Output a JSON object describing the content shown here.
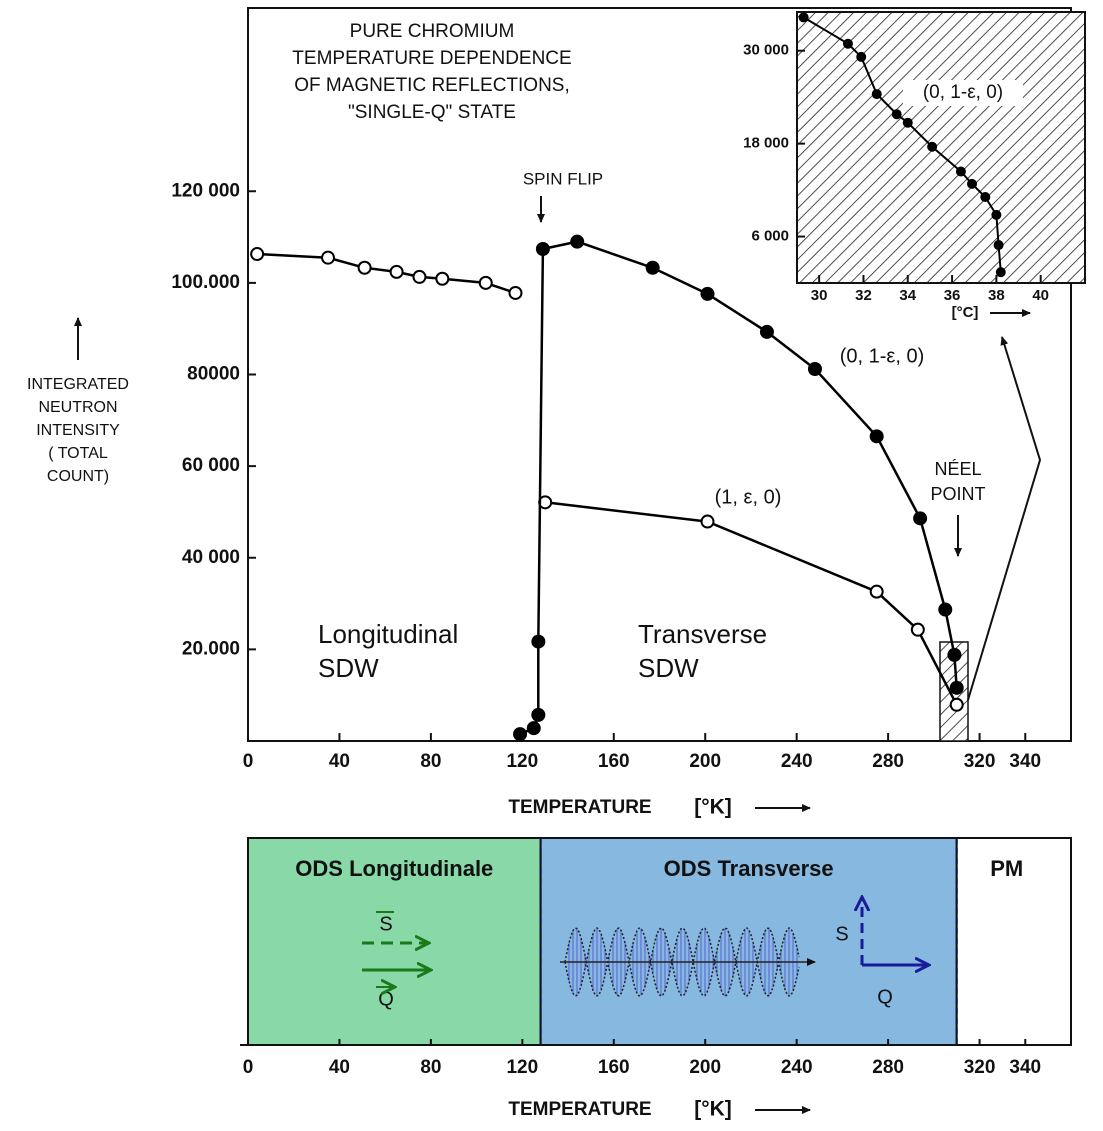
{
  "chart_data": [
    {
      "type": "line",
      "title": [
        "PURE CHROMIUM",
        "TEMPERATURE DEPENDENCE",
        "OF MAGNETIC REFLECTIONS,",
        "\"SINGLE-Q\" STATE"
      ],
      "ylabel": [
        "INTEGRATED",
        "NEUTRON",
        "INTENSITY",
        "( TOTAL",
        "COUNT)"
      ],
      "xlabel": "TEMPERATURE",
      "xunit": "[°K]",
      "xlim": [
        0,
        360
      ],
      "xticks": [
        0,
        40,
        80,
        120,
        160,
        200,
        240,
        280,
        320,
        340
      ],
      "ylim": [
        0,
        160000
      ],
      "yticks": [
        {
          "value": 20000,
          "label": "20.000"
        },
        {
          "value": 40000,
          "label": "40 000"
        },
        {
          "value": 60000,
          "label": "60 000"
        },
        {
          "value": 80000,
          "label": "80000"
        },
        {
          "value": 100000,
          "label": "100.000"
        },
        {
          "value": 120000,
          "label": "120 000"
        }
      ],
      "grid": false,
      "series": [
        {
          "marker": "open",
          "color": "#000000",
          "x": [
            4,
            35,
            51,
            65,
            75,
            85,
            104,
            117
          ],
          "values": [
            106300,
            105500,
            103300,
            102400,
            101300,
            100900,
            100000,
            97800
          ]
        },
        {
          "name": "(1, ε, 0)",
          "marker": "open",
          "color": "#000000",
          "x": [
            130,
            201,
            275,
            293,
            310
          ],
          "values": [
            52100,
            47900,
            32600,
            24300,
            7900
          ]
        },
        {
          "name": "(0, 1-ε, 0)",
          "marker": "filled",
          "color": "#000000",
          "x": [
            119,
            125,
            127,
            127,
            129,
            144,
            177,
            201,
            227,
            248,
            275,
            294,
            305,
            309,
            310
          ],
          "values": [
            1500,
            2800,
            5700,
            21700,
            107400,
            109000,
            103300,
            97600,
            89300,
            81200,
            66500,
            48600,
            28700,
            18800,
            11600
          ]
        }
      ],
      "annotations": [
        "SPIN FLIP",
        "NÉEL",
        "POINT",
        "Longitudinal",
        "SDW",
        "Transverse",
        "SDW"
      ]
    },
    {
      "type": "line",
      "xlabel": "[°C]",
      "xlim": [
        29,
        42
      ],
      "xticks": [
        30,
        32,
        34,
        36,
        38,
        40
      ],
      "ylim": [
        0,
        35000
      ],
      "yticks": [
        {
          "value": 6000,
          "label": "6 000"
        },
        {
          "value": 18000,
          "label": "18 000"
        },
        {
          "value": 30000,
          "label": "30 000"
        }
      ],
      "series": [
        {
          "name": "(0, 1-ε, 0)",
          "marker": "filled",
          "color": "#000000",
          "x": [
            29.3,
            31.3,
            31.9,
            32.6,
            33.5,
            34.0,
            35.1,
            36.4,
            36.9,
            37.5,
            38.0,
            38.1,
            38.2
          ],
          "values": [
            34300,
            30900,
            29200,
            24400,
            21800,
            20700,
            17600,
            14400,
            12800,
            11100,
            8800,
            4900,
            1400
          ]
        }
      ]
    },
    {
      "type": "phase-band",
      "xlabel": "TEMPERATURE",
      "xunit": "[°K]",
      "xlim": [
        0,
        360
      ],
      "xticks": [
        0,
        40,
        80,
        120,
        160,
        200,
        240,
        280,
        320,
        340
      ],
      "bands": [
        {
          "label": "ODS Longitudinale",
          "start": 0,
          "end": 128,
          "color": "#88d8a8",
          "text_color": "#1a7a1a"
        },
        {
          "label": "ODS Transverse",
          "start": 128,
          "end": 310,
          "color": "#86b8e0",
          "text_color": "#1a1a9a"
        },
        {
          "label": "PM",
          "start": 310,
          "end": 360,
          "color": "#ffffff",
          "text_color": "#000000"
        }
      ],
      "symbols": [
        "S",
        "Q"
      ]
    }
  ]
}
